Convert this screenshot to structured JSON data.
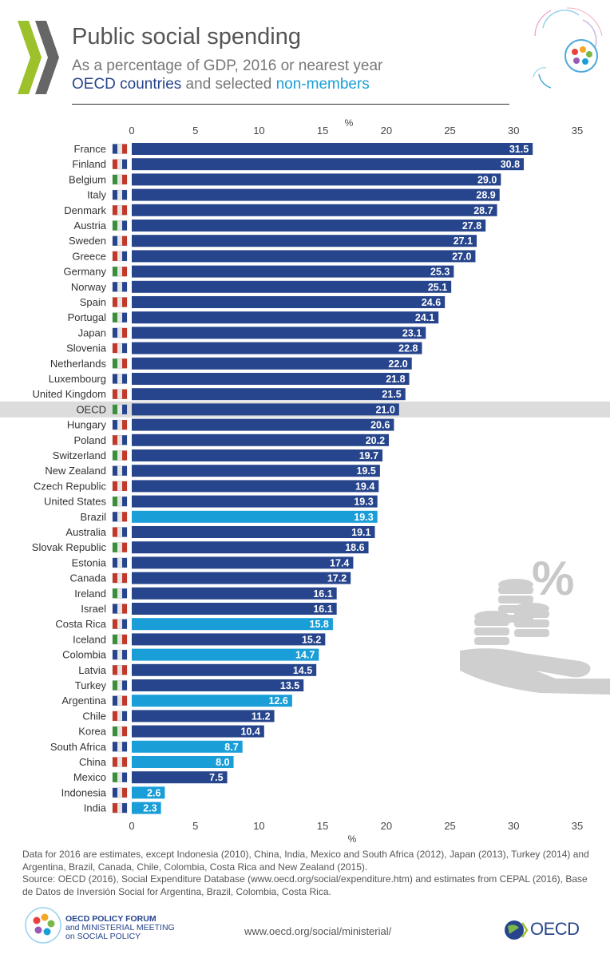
{
  "header": {
    "title": "Public social spending",
    "subtitle": "As a percentage of GDP, 2016 or nearest year",
    "subtitle2": {
      "oecd": "OECD countries",
      "and": " and selected ",
      "non": "non-members"
    }
  },
  "chart_data": {
    "type": "bar",
    "orientation": "horizontal",
    "title": "Public social spending",
    "subtitle": "As a percentage of GDP, 2016 or nearest year",
    "xlabel": "%",
    "xlim": [
      0,
      35
    ],
    "xticks": [
      0,
      5,
      10,
      15,
      20,
      25,
      30,
      35
    ],
    "legend": [
      "OECD countries",
      "selected non-members"
    ],
    "categories": [
      "France",
      "Finland",
      "Belgium",
      "Italy",
      "Denmark",
      "Austria",
      "Sweden",
      "Greece",
      "Germany",
      "Norway",
      "Spain",
      "Portugal",
      "Japan",
      "Slovenia",
      "Netherlands",
      "Luxembourg",
      "United Kingdom",
      "OECD",
      "Hungary",
      "Poland",
      "Switzerland",
      "New Zealand",
      "Czech Republic",
      "United States",
      "Brazil",
      "Australia",
      "Slovak Republic",
      "Estonia",
      "Canada",
      "Ireland",
      "Israel",
      "Costa Rica",
      "Iceland",
      "Colombia",
      "Latvia",
      "Turkey",
      "Argentina",
      "Chile",
      "Korea",
      "South Africa",
      "China",
      "Mexico",
      "Indonesia",
      "India"
    ],
    "values": [
      31.5,
      30.8,
      29.0,
      28.9,
      28.7,
      27.8,
      27.1,
      27.0,
      25.3,
      25.1,
      24.6,
      24.1,
      23.1,
      22.8,
      22.0,
      21.8,
      21.5,
      21.0,
      20.6,
      20.2,
      19.7,
      19.5,
      19.4,
      19.3,
      19.3,
      19.1,
      18.6,
      17.4,
      17.2,
      16.1,
      16.1,
      15.8,
      15.2,
      14.7,
      14.5,
      13.5,
      12.6,
      11.2,
      10.4,
      8.7,
      8.0,
      7.5,
      2.6,
      2.3
    ],
    "labels": [
      "31.5",
      "30.8",
      "29.0",
      "28.9",
      "28.7",
      "27.8",
      "27.1",
      "27.0",
      "25.3",
      "25.1",
      "24.6",
      "24.1",
      "23.1",
      "22.8",
      "22.0",
      "21.8",
      "21.5",
      "21.0",
      "20.6",
      "20.2",
      "19.7",
      "19.5",
      "19.4",
      "19.3",
      "19.3",
      "19.1",
      "18.6",
      "17.4",
      "17.2",
      "16.1",
      "16.1",
      "15.8",
      "15.2",
      "14.7",
      "14.5",
      "13.5",
      "12.6",
      "11.2",
      "10.4",
      "8.7",
      "8.0",
      "7.5",
      "2.6",
      "2.3"
    ],
    "group": [
      "oecd",
      "oecd",
      "oecd",
      "oecd",
      "oecd",
      "oecd",
      "oecd",
      "oecd",
      "oecd",
      "oecd",
      "oecd",
      "oecd",
      "oecd",
      "oecd",
      "oecd",
      "oecd",
      "oecd",
      "oecd",
      "oecd",
      "oecd",
      "oecd",
      "oecd",
      "oecd",
      "oecd",
      "non",
      "oecd",
      "oecd",
      "oecd",
      "oecd",
      "oecd",
      "oecd",
      "non",
      "oecd",
      "non",
      "oecd",
      "oecd",
      "non",
      "oecd",
      "oecd",
      "non",
      "non",
      "oecd",
      "non",
      "non"
    ],
    "highlight": "OECD",
    "colors": {
      "oecd": "#27458c",
      "non": "#1a9ed8",
      "highlight_band": "#dcdcdc"
    }
  },
  "notes": [
    "Data for 2016 are estimates, except Indonesia (2010), China, India, Mexico and South Africa (2012), Japan (2013), Turkey (2014) and Argentina, Brazil, Canada, Chile, Colombia, Costa Rica and New Zealand (2015).",
    "Source: OECD (2016), Social Expenditure Database (www.oecd.org/social/expenditure.htm) and estimates from CEPAL (2016), Base de Datos de Inversión Social for Argentina, Brazil, Colombia, Costa Rica."
  ],
  "footer": {
    "forum_line1": "OECD POLICY FORUM",
    "forum_line2": "and MINISTERIAL MEETING",
    "forum_line3": "on SOCIAL POLICY",
    "url": "www.oecd.org/social/ministerial/",
    "brand": "OECD"
  }
}
